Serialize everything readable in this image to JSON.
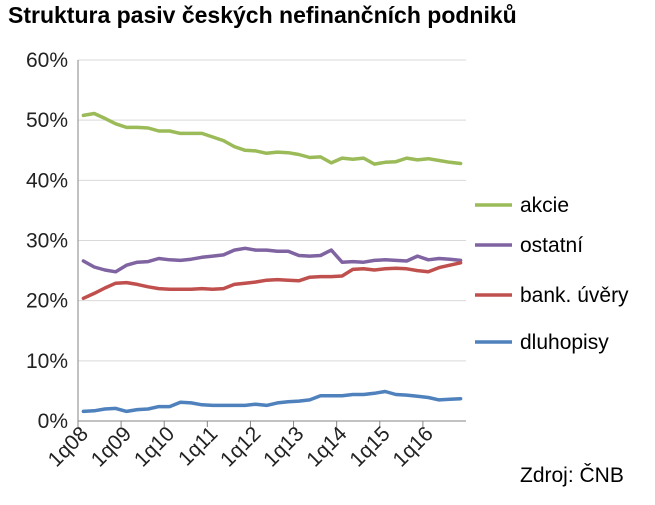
{
  "chart_data": {
    "type": "line",
    "title": "Struktura pasiv českých nefinančních podniků",
    "source": "Zdroj: ČNB",
    "xlabel": "",
    "ylabel": "",
    "ylim": [
      0,
      60
    ],
    "y_ticks": [
      "0%",
      "10%",
      "20%",
      "30%",
      "40%",
      "50%",
      "60%"
    ],
    "y_tick_values": [
      0,
      10,
      20,
      30,
      40,
      50,
      60
    ],
    "x_tick_labels": [
      "1q08",
      "1q09",
      "1q10",
      "1q11",
      "1q12",
      "1q13",
      "1q14",
      "1q15",
      "1q16"
    ],
    "grid": "horizontal",
    "legend_position": "right",
    "x": [
      "1q08",
      "2q08",
      "3q08",
      "4q08",
      "1q09",
      "2q09",
      "3q09",
      "4q09",
      "1q10",
      "2q10",
      "3q10",
      "4q10",
      "1q11",
      "2q11",
      "3q11",
      "4q11",
      "1q12",
      "2q12",
      "3q12",
      "4q12",
      "1q13",
      "2q13",
      "3q13",
      "4q13",
      "1q14",
      "2q14",
      "3q14",
      "4q14",
      "1q15",
      "2q15",
      "3q15",
      "4q15",
      "1q16",
      "2q16",
      "3q16",
      "4q16"
    ],
    "series": [
      {
        "name": "akcie",
        "color": "#9bbb59",
        "values": [
          50.8,
          51.1,
          50.3,
          49.4,
          48.8,
          48.8,
          48.7,
          48.2,
          48.2,
          47.8,
          47.8,
          47.8,
          47.2,
          46.6,
          45.6,
          45.0,
          44.9,
          44.5,
          44.7,
          44.6,
          44.3,
          43.8,
          43.9,
          42.9,
          43.7,
          43.5,
          43.7,
          42.7,
          43.0,
          43.1,
          43.7,
          43.4,
          43.6,
          43.3,
          43.0,
          42.8
        ]
      },
      {
        "name": "ostatní",
        "color": "#8064a2",
        "values": [
          26.6,
          25.6,
          25.1,
          24.8,
          25.9,
          26.4,
          26.5,
          27.0,
          26.8,
          26.7,
          26.9,
          27.2,
          27.4,
          27.6,
          28.4,
          28.7,
          28.4,
          28.4,
          28.2,
          28.2,
          27.5,
          27.4,
          27.5,
          28.4,
          26.4,
          26.5,
          26.4,
          26.7,
          26.8,
          26.7,
          26.6,
          27.4,
          26.8,
          27.0,
          26.9,
          26.7
        ]
      },
      {
        "name": "bank. úvěry",
        "color": "#c0504d",
        "values": [
          20.4,
          21.2,
          22.1,
          22.9,
          23.0,
          22.7,
          22.3,
          22.0,
          21.9,
          21.9,
          21.9,
          22.0,
          21.9,
          22.0,
          22.7,
          22.9,
          23.1,
          23.4,
          23.5,
          23.4,
          23.3,
          23.9,
          24.0,
          24.0,
          24.1,
          25.2,
          25.3,
          25.1,
          25.3,
          25.4,
          25.3,
          25.0,
          24.8,
          25.5,
          25.9,
          26.3
        ]
      },
      {
        "name": "dluhopisy",
        "color": "#4f81bd",
        "values": [
          1.6,
          1.7,
          2.0,
          2.1,
          1.6,
          1.9,
          2.0,
          2.4,
          2.4,
          3.1,
          3.0,
          2.7,
          2.6,
          2.6,
          2.6,
          2.6,
          2.8,
          2.6,
          3.0,
          3.2,
          3.3,
          3.5,
          4.2,
          4.2,
          4.2,
          4.4,
          4.4,
          4.6,
          4.9,
          4.4,
          4.3,
          4.1,
          3.9,
          3.5,
          3.6,
          3.7
        ]
      }
    ]
  },
  "colors": {
    "akcie": "#9bbb59",
    "ostatni": "#8064a2",
    "bank_uvery": "#c0504d",
    "dluhopisy": "#4f81bd",
    "grid": "#d9d9d9",
    "axis": "#868686"
  }
}
